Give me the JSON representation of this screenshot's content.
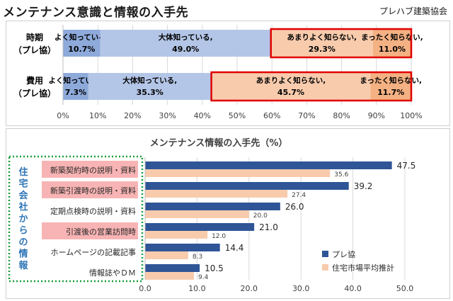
{
  "header": {
    "title": "メンテナンス意識と情報の入手先",
    "organization": "プレハブ建築協会"
  },
  "colors": {
    "seg_light_blue": "#b4c6e7",
    "seg_dark_blue": "#8eaadb",
    "seg_light_orange": "#f8cbad",
    "seg_dark_orange": "#f4b183",
    "highlight_red": "#e00000",
    "bar_blue": "#2f5597",
    "bar_peach": "#f8cbad",
    "pink_label": "#f8b4b4",
    "green_dotted": "#1a9e3a"
  },
  "chart_data": [
    {
      "type": "bar",
      "orientation": "horizontal-stacked-100",
      "rows": [
        {
          "name": "時期",
          "sub": "（プレ協）",
          "segments": [
            {
              "label": "よく知っている,",
              "value": 10.7,
              "value_text": "10.7%"
            },
            {
              "label": "大体知っている,",
              "value": 49.0,
              "value_text": "49.0%"
            },
            {
              "label": "あまりよく知らない,",
              "value": 29.3,
              "value_text": "29.3%"
            },
            {
              "label": "まったく知らない,",
              "value": 11.0,
              "value_text": "11.0%"
            }
          ]
        },
        {
          "name": "費用",
          "sub": "（プレ協）",
          "segments": [
            {
              "label": "よく知っている,",
              "value": 7.3,
              "value_text": "7.3%"
            },
            {
              "label": "大体知っている,",
              "value": 35.3,
              "value_text": "35.3%"
            },
            {
              "label": "あまりよく知らない,",
              "value": 45.7,
              "value_text": "45.7%"
            },
            {
              "label": "まったく知らない,",
              "value": 11.7,
              "value_text": "11.7%"
            }
          ]
        }
      ],
      "x_ticks": [
        "0%",
        "10%",
        "20%",
        "30%",
        "40%",
        "50%",
        "60%",
        "70%",
        "80%",
        "90%",
        "100%"
      ],
      "xlim": [
        0,
        100
      ]
    },
    {
      "type": "bar",
      "orientation": "horizontal-grouped",
      "title": "メンテナンス情報の入手先（%）",
      "categories": [
        "新築契約時の説明・資料",
        "新築引渡時の説明・資料",
        "定期点検時の説明・資料",
        "引渡後の営業訪問時",
        "ホームページの記載記事",
        "情報誌やＤＭ"
      ],
      "highlighted": [
        true,
        true,
        false,
        true,
        false,
        false
      ],
      "group_label": "住宅会社からの情報",
      "series": [
        {
          "name": "プレ協",
          "values": [
            47.5,
            39.2,
            26.0,
            21.0,
            14.4,
            10.5
          ],
          "labels": [
            "47.5",
            "39.2",
            "26.0",
            "21.0",
            "14.4",
            "10.5"
          ]
        },
        {
          "name": "住宅市場平均推計",
          "values": [
            35.6,
            27.4,
            20.0,
            12.0,
            8.3,
            9.4
          ],
          "labels": [
            "35.6",
            "27.4",
            "20.0",
            "12.0",
            "8.3",
            "9.4"
          ]
        }
      ],
      "x_ticks": [
        "0.0",
        "10.0",
        "20.0",
        "30.0",
        "40.0",
        "50.0"
      ],
      "xlim": [
        0,
        50
      ]
    }
  ]
}
